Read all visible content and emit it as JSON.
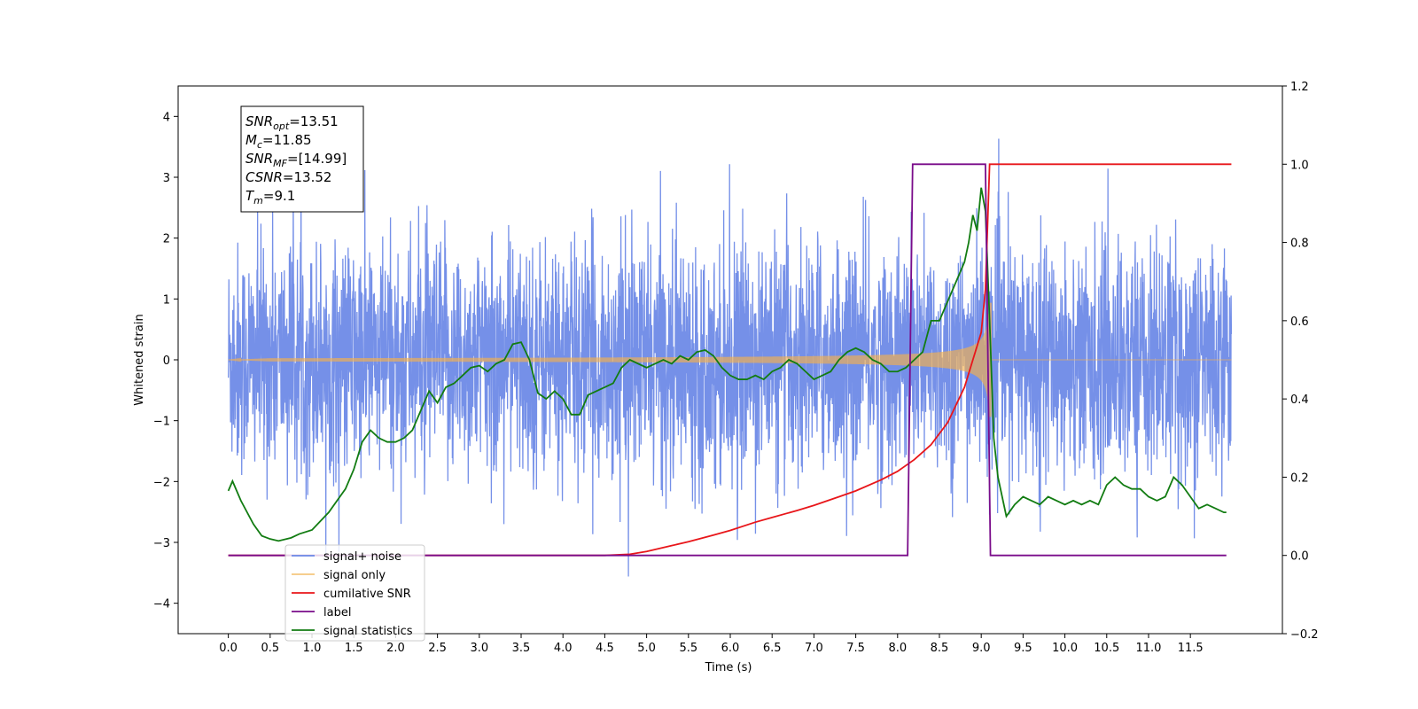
{
  "chart_data": {
    "type": "line",
    "xlabel": "Time (s)",
    "ylabel_left": "Whitened strain",
    "xlim": [
      -0.6,
      12.6
    ],
    "ylim_left": [
      -4.5,
      4.5
    ],
    "ylim_right": [
      -0.2,
      1.2
    ],
    "x_ticks": [
      0.0,
      0.5,
      1.0,
      1.5,
      2.0,
      2.5,
      3.0,
      3.5,
      4.0,
      4.5,
      5.0,
      5.5,
      6.0,
      6.5,
      7.0,
      7.5,
      8.0,
      8.5,
      9.0,
      9.5,
      10.0,
      10.5,
      11.0,
      11.5
    ],
    "x_tick_labels": [
      "0.0",
      "0.5",
      "1.0",
      "1.5",
      "2.0",
      "2.5",
      "3.0",
      "3.5",
      "4.0",
      "4.5",
      "5.0",
      "5.5",
      "6.0",
      "6.5",
      "7.0",
      "7.5",
      "8.0",
      "8.5",
      "9.0",
      "9.5",
      "10.0",
      "10.5",
      "11.0",
      "11.5"
    ],
    "y_left_ticks": [
      4,
      3,
      2,
      1,
      0,
      -1,
      -2,
      -3,
      -4
    ],
    "y_left_tick_labels": [
      "4",
      "3",
      "2",
      "1",
      "0",
      "−1",
      "−2",
      "−3",
      "−4"
    ],
    "y_right_ticks": [
      1.2,
      1.0,
      0.8,
      0.6,
      0.4,
      0.2,
      0.0,
      -0.2
    ],
    "y_right_tick_labels": [
      "1.2",
      "1.0",
      "0.8",
      "0.6",
      "0.4",
      "0.2",
      "0.0",
      "−0.2"
    ],
    "grid": false,
    "legend_position": "lower-left",
    "annotation": {
      "lines": [
        {
          "sym": "SNR",
          "sub": "opt",
          "val": "=13.51"
        },
        {
          "sym": "M",
          "sub": "c",
          "val": "=11.85"
        },
        {
          "sym": "SNR",
          "sub": "MF",
          "val": "=[14.99]"
        },
        {
          "sym": "CSNR",
          "sub": "",
          "val": "=13.52"
        },
        {
          "sym": "T",
          "sub": "m",
          "val": "=9.1"
        }
      ]
    },
    "series": [
      {
        "name": "signal+ noise",
        "axis": "left",
        "color": "#6a88e6",
        "style": "noise",
        "t_range": [
          0.0,
          11.99
        ],
        "std": 1.0,
        "chirp_merge": 9.1
      },
      {
        "name": "signal only",
        "axis": "left",
        "color": "#f5b04d",
        "style": "chirp",
        "t_range": [
          0.0,
          11.99
        ],
        "merge_time": 9.1,
        "peak_amplitude": 2.3
      },
      {
        "name": "cumilative SNR",
        "axis": "right",
        "x": [
          0.0,
          4.0,
          4.5,
          4.8,
          5.0,
          5.3,
          5.5,
          5.8,
          6.0,
          6.3,
          6.5,
          6.8,
          7.0,
          7.3,
          7.5,
          7.8,
          8.0,
          8.2,
          8.4,
          8.6,
          8.8,
          9.0,
          9.05,
          9.1,
          11.99
        ],
        "y": [
          0.0,
          0.0,
          0.0,
          0.003,
          0.01,
          0.025,
          0.035,
          0.052,
          0.064,
          0.085,
          0.097,
          0.115,
          0.128,
          0.15,
          0.165,
          0.193,
          0.215,
          0.245,
          0.283,
          0.34,
          0.43,
          0.57,
          0.68,
          1.0,
          1.0
        ]
      },
      {
        "name": "label",
        "axis": "right",
        "x": [
          0.0,
          8.12,
          8.18,
          9.05,
          9.11,
          11.93
        ],
        "y": [
          0.0,
          0.0,
          1.0,
          1.0,
          0.0,
          0.0
        ]
      },
      {
        "name": "signal statistics",
        "axis": "right",
        "x": [
          0.0,
          0.05,
          0.15,
          0.3,
          0.4,
          0.5,
          0.6,
          0.75,
          0.85,
          1.0,
          1.2,
          1.4,
          1.5,
          1.6,
          1.7,
          1.8,
          1.9,
          2.0,
          2.1,
          2.2,
          2.3,
          2.4,
          2.5,
          2.6,
          2.7,
          2.8,
          2.9,
          3.0,
          3.1,
          3.2,
          3.3,
          3.4,
          3.5,
          3.6,
          3.7,
          3.8,
          3.9,
          4.0,
          4.1,
          4.2,
          4.3,
          4.4,
          4.5,
          4.6,
          4.7,
          4.8,
          5.0,
          5.1,
          5.2,
          5.3,
          5.4,
          5.5,
          5.6,
          5.7,
          5.8,
          5.9,
          6.0,
          6.1,
          6.2,
          6.3,
          6.4,
          6.5,
          6.6,
          6.7,
          6.8,
          6.9,
          7.0,
          7.1,
          7.2,
          7.3,
          7.4,
          7.5,
          7.6,
          7.7,
          7.8,
          7.9,
          8.0,
          8.1,
          8.2,
          8.3,
          8.4,
          8.5,
          8.6,
          8.7,
          8.8,
          8.85,
          8.9,
          8.95,
          9.0,
          9.05,
          9.1,
          9.15,
          9.2,
          9.25,
          9.3,
          9.4,
          9.5,
          9.6,
          9.7,
          9.8,
          9.9,
          10.0,
          10.1,
          10.2,
          10.3,
          10.4,
          10.5,
          10.6,
          10.7,
          10.8,
          10.9,
          11.0,
          11.1,
          11.2,
          11.3,
          11.4,
          11.5,
          11.6,
          11.7,
          11.8,
          11.9,
          11.93
        ],
        "y": [
          0.165,
          0.19,
          0.14,
          0.08,
          0.05,
          0.042,
          0.037,
          0.045,
          0.055,
          0.065,
          0.11,
          0.17,
          0.22,
          0.29,
          0.32,
          0.3,
          0.29,
          0.29,
          0.3,
          0.32,
          0.37,
          0.42,
          0.39,
          0.43,
          0.44,
          0.46,
          0.48,
          0.485,
          0.47,
          0.49,
          0.5,
          0.54,
          0.545,
          0.5,
          0.415,
          0.4,
          0.42,
          0.4,
          0.36,
          0.36,
          0.41,
          0.42,
          0.43,
          0.44,
          0.48,
          0.5,
          0.48,
          0.49,
          0.5,
          0.49,
          0.51,
          0.5,
          0.52,
          0.525,
          0.51,
          0.48,
          0.46,
          0.45,
          0.45,
          0.46,
          0.45,
          0.47,
          0.48,
          0.5,
          0.49,
          0.47,
          0.45,
          0.46,
          0.47,
          0.5,
          0.52,
          0.53,
          0.52,
          0.5,
          0.49,
          0.47,
          0.47,
          0.48,
          0.5,
          0.52,
          0.6,
          0.6,
          0.65,
          0.7,
          0.75,
          0.8,
          0.87,
          0.83,
          0.94,
          0.88,
          0.6,
          0.3,
          0.2,
          0.15,
          0.1,
          0.13,
          0.15,
          0.14,
          0.13,
          0.15,
          0.14,
          0.13,
          0.14,
          0.13,
          0.14,
          0.13,
          0.18,
          0.2,
          0.18,
          0.17,
          0.17,
          0.15,
          0.14,
          0.15,
          0.2,
          0.18,
          0.15,
          0.12,
          0.13,
          0.12,
          0.11,
          0.11
        ]
      }
    ]
  }
}
